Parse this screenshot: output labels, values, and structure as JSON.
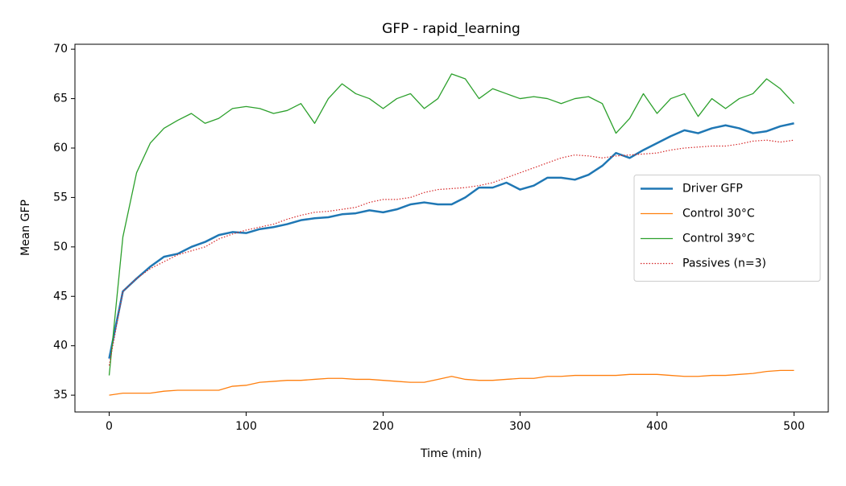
{
  "chart_data": {
    "type": "line",
    "title": "GFP - rapid_learning",
    "xlabel": "Time (min)",
    "ylabel": "Mean GFP",
    "x": [
      0,
      10,
      20,
      30,
      40,
      50,
      60,
      70,
      80,
      90,
      100,
      110,
      120,
      130,
      140,
      150,
      160,
      170,
      180,
      190,
      200,
      210,
      220,
      230,
      240,
      250,
      260,
      270,
      280,
      290,
      300,
      310,
      320,
      330,
      340,
      350,
      360,
      370,
      380,
      390,
      400,
      410,
      420,
      430,
      440,
      450,
      460,
      470,
      480,
      490,
      500
    ],
    "xlim": [
      -25,
      525
    ],
    "ylim": [
      33.3,
      70.5
    ],
    "xticks": [
      0,
      100,
      200,
      300,
      400,
      500
    ],
    "yticks": [
      35,
      40,
      45,
      50,
      55,
      60,
      65,
      70
    ],
    "legend": "center right",
    "series": [
      {
        "name": "Driver GFP",
        "color": "#1f77b4",
        "width": 2.5,
        "style": "solid",
        "values": [
          38.7,
          45.5,
          46.8,
          48,
          49,
          49.3,
          50,
          50.5,
          51.2,
          51.5,
          51.4,
          51.8,
          52,
          52.3,
          52.7,
          52.9,
          53,
          53.3,
          53.4,
          53.7,
          53.5,
          53.8,
          54.3,
          54.5,
          54.3,
          54.3,
          55,
          56,
          56,
          56.5,
          55.8,
          56.2,
          57,
          57,
          56.8,
          57.3,
          58.2,
          59.5,
          59,
          59.8,
          60.5,
          61.2,
          61.8,
          61.5,
          62,
          62.3,
          62,
          61.5,
          61.7,
          62.2,
          62.5
        ]
      },
      {
        "name": "Control 30°C",
        "color": "#ff7f0e",
        "width": 1.3,
        "style": "solid",
        "values": [
          35,
          35.2,
          35.2,
          35.2,
          35.4,
          35.5,
          35.5,
          35.5,
          35.5,
          35.9,
          36,
          36.3,
          36.4,
          36.5,
          36.5,
          36.6,
          36.7,
          36.7,
          36.6,
          36.6,
          36.5,
          36.4,
          36.3,
          36.3,
          36.6,
          36.9,
          36.6,
          36.5,
          36.5,
          36.6,
          36.7,
          36.7,
          36.9,
          36.9,
          37,
          37,
          37,
          37,
          37.1,
          37.1,
          37.1,
          37,
          36.9,
          36.9,
          37,
          37,
          37.1,
          37.2,
          37.4,
          37.5,
          37.5
        ]
      },
      {
        "name": "Control 39°C",
        "color": "#2ca02c",
        "width": 1.3,
        "style": "solid",
        "values": [
          37,
          51,
          57.5,
          60.5,
          62,
          62.8,
          63.5,
          62.5,
          63,
          64,
          64.2,
          64,
          63.5,
          63.8,
          64.5,
          62.5,
          65,
          66.5,
          65.5,
          65,
          64,
          65,
          65.5,
          64,
          65,
          67.5,
          67,
          65,
          66,
          65.5,
          65,
          65.2,
          65,
          64.5,
          65,
          65.2,
          64.5,
          61.5,
          63,
          65.5,
          63.5,
          65,
          65.5,
          63.2,
          65,
          64,
          65,
          65.5,
          67,
          66,
          64.5
        ]
      },
      {
        "name": "Passives (n=3)",
        "color": "#d62728",
        "width": 1.2,
        "style": "dotted",
        "values": [
          38,
          45.5,
          46.8,
          47.8,
          48.5,
          49.2,
          49.6,
          50,
          50.8,
          51.3,
          51.7,
          52,
          52.3,
          52.8,
          53.2,
          53.5,
          53.6,
          53.8,
          54,
          54.5,
          54.8,
          54.8,
          55,
          55.5,
          55.8,
          55.9,
          56,
          56.2,
          56.5,
          57,
          57.5,
          58,
          58.5,
          59,
          59.3,
          59.2,
          59,
          59.2,
          59.3,
          59.4,
          59.5,
          59.8,
          60,
          60.1,
          60.2,
          60.2,
          60.4,
          60.7,
          60.8,
          60.6,
          60.8
        ]
      }
    ]
  }
}
